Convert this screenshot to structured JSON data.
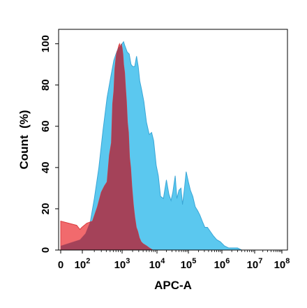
{
  "chart_data": {
    "type": "area",
    "xlabel": "APC-A",
    "ylabel": "Count  (%)",
    "x_scale": "log",
    "xlim": [
      0,
      100000000
    ],
    "ylim": [
      0,
      107
    ],
    "grid": false,
    "x_ticks": [
      {
        "value": 0,
        "base": "0",
        "exp": ""
      },
      {
        "value": 100,
        "base": "10",
        "exp": "2"
      },
      {
        "value": 1000,
        "base": "10",
        "exp": "3"
      },
      {
        "value": 10000,
        "base": "10",
        "exp": "4"
      },
      {
        "value": 100000,
        "base": "10",
        "exp": "5"
      },
      {
        "value": 1000000,
        "base": "10",
        "exp": "6"
      },
      {
        "value": 10000000,
        "base": "10",
        "exp": "7"
      },
      {
        "value": 100000000,
        "base": "10",
        "exp": "8"
      }
    ],
    "y_ticks": [
      0,
      20,
      40,
      60,
      80,
      100
    ],
    "series": [
      {
        "color": "#5bc8ef",
        "stroke": "#3aa6d6",
        "points": [
          [
            0,
            2
          ],
          [
            60,
            5
          ],
          [
            120,
            8
          ],
          [
            160,
            14
          ],
          [
            200,
            25
          ],
          [
            260,
            40
          ],
          [
            330,
            58
          ],
          [
            420,
            74
          ],
          [
            520,
            84
          ],
          [
            620,
            92
          ],
          [
            700,
            95
          ],
          [
            800,
            98
          ],
          [
            900,
            99
          ],
          [
            1000,
            100
          ],
          [
            1100,
            101
          ],
          [
            1200,
            99
          ],
          [
            1400,
            96
          ],
          [
            1600,
            95
          ],
          [
            1800,
            90
          ],
          [
            2000,
            89
          ],
          [
            2300,
            89
          ],
          [
            2600,
            94
          ],
          [
            2900,
            89
          ],
          [
            3200,
            82
          ],
          [
            3600,
            78
          ],
          [
            4200,
            72
          ],
          [
            5000,
            62
          ],
          [
            6000,
            56
          ],
          [
            7000,
            57
          ],
          [
            8000,
            53
          ],
          [
            9500,
            41
          ],
          [
            11000,
            36
          ],
          [
            13000,
            26
          ],
          [
            16000,
            25
          ],
          [
            20000,
            34
          ],
          [
            24000,
            27
          ],
          [
            28000,
            24
          ],
          [
            32000,
            28
          ],
          [
            38000,
            36
          ],
          [
            43000,
            25
          ],
          [
            50000,
            29
          ],
          [
            58000,
            30
          ],
          [
            65000,
            22
          ],
          [
            75000,
            30
          ],
          [
            85000,
            38
          ],
          [
            100000,
            33
          ],
          [
            115000,
            29
          ],
          [
            135000,
            26
          ],
          [
            160000,
            21
          ],
          [
            190000,
            19
          ],
          [
            220000,
            17
          ],
          [
            260000,
            14
          ],
          [
            310000,
            11
          ],
          [
            370000,
            11
          ],
          [
            450000,
            9
          ],
          [
            550000,
            7
          ],
          [
            700000,
            5
          ],
          [
            900000,
            4
          ],
          [
            1200000,
            2
          ],
          [
            1600000,
            1
          ],
          [
            2200000,
            1
          ],
          [
            3000000,
            1
          ],
          [
            4000000,
            0
          ]
        ]
      },
      {
        "color": "#ef5a5d",
        "stroke": "#d93c40",
        "points": [
          [
            0,
            14
          ],
          [
            30,
            12
          ],
          [
            60,
            10
          ],
          [
            90,
            11
          ],
          [
            130,
            13
          ],
          [
            180,
            14
          ],
          [
            240,
            21
          ],
          [
            300,
            28
          ],
          [
            360,
            31
          ],
          [
            420,
            33
          ],
          [
            480,
            46
          ],
          [
            540,
            52
          ],
          [
            580,
            71
          ],
          [
            620,
            77
          ],
          [
            660,
            88
          ],
          [
            700,
            93
          ],
          [
            740,
            96
          ],
          [
            780,
            97
          ],
          [
            820,
            99
          ],
          [
            860,
            100
          ],
          [
            900,
            98
          ],
          [
            950,
            100
          ],
          [
            1000,
            98
          ],
          [
            1050,
            95
          ],
          [
            1100,
            90
          ],
          [
            1180,
            86
          ],
          [
            1250,
            79
          ],
          [
            1330,
            72
          ],
          [
            1420,
            62
          ],
          [
            1520,
            57
          ],
          [
            1630,
            45
          ],
          [
            1750,
            40
          ],
          [
            1900,
            31
          ],
          [
            2100,
            22
          ],
          [
            2300,
            16
          ],
          [
            2550,
            11
          ],
          [
            2800,
            9
          ],
          [
            3100,
            6
          ],
          [
            3500,
            4
          ],
          [
            4000,
            3
          ],
          [
            5000,
            2
          ],
          [
            6000,
            1
          ],
          [
            7500,
            0
          ]
        ]
      }
    ],
    "overlap_color": "#9e3f58"
  }
}
